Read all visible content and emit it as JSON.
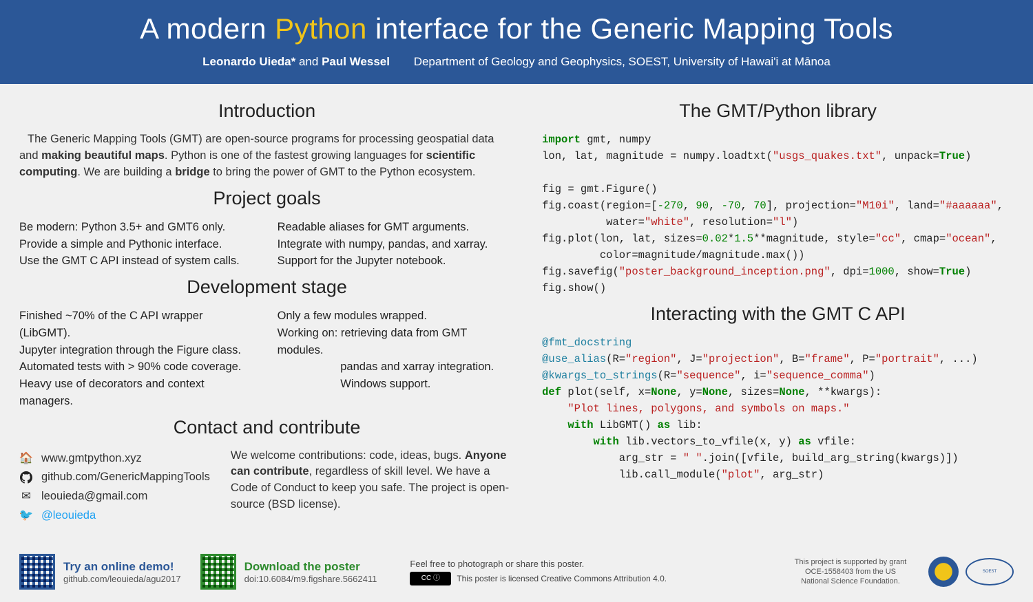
{
  "header": {
    "title_pre": "A modern ",
    "title_hl": "Python",
    "title_post": " interface for the Generic Mapping Tools",
    "author1": "Leonardo Uieda*",
    "and": " and ",
    "author2": "Paul Wessel",
    "dept": "Department of Geology and Geophysics, SOEST, University of Hawai'i at Mānoa"
  },
  "intro": {
    "heading": "Introduction",
    "text_html": "The Generic Mapping Tools (GMT) are open-source programs for processing geospatial data and <b>making beautiful maps</b>. Python is one of the fastest growing languages for <b>scientific computing</b>. We are building a <b>bridge</b> to bring the power of GMT to the Python ecosystem."
  },
  "goals": {
    "heading": "Project goals",
    "left": [
      "Be modern: Python 3.5+ and GMT6 only.",
      "Provide a simple and Pythonic interface.",
      "Use the GMT C API instead of system calls."
    ],
    "right": [
      "Readable aliases for GMT arguments.",
      "Integrate with numpy, pandas, and xarray.",
      "Support for the Jupyter notebook."
    ]
  },
  "dev": {
    "heading": "Development stage",
    "left": [
      "Finished ~70% of the C API wrapper (LibGMT).",
      "Jupyter integration through the Figure class.",
      "Automated tests with > 90% code coverage.",
      "Heavy use of decorators and context managers."
    ],
    "right": [
      "Only a few modules wrapped.",
      "Working on: retrieving data from GMT modules.",
      "                    pandas and xarray integration.",
      "                    Windows support."
    ]
  },
  "contact": {
    "heading": "Contact and contribute",
    "items": [
      {
        "icon": "home",
        "text": "www.gmtpython.xyz"
      },
      {
        "icon": "github",
        "text": "github.com/GenericMappingTools"
      },
      {
        "icon": "mail",
        "text": "leouieda@gmail.com"
      },
      {
        "icon": "twitter",
        "text": "@leouieda",
        "cls": "twitter-handle"
      }
    ],
    "blurb_html": "We welcome contributions: code, ideas, bugs. <b>Anyone can contribute</b>, regardless of skill level. We have a Code of Conduct to keep you safe. The project is open-source (BSD license)."
  },
  "lib": {
    "heading": "The GMT/Python library"
  },
  "capi": {
    "heading": "Interacting with the GMT C API"
  },
  "footer": {
    "demo_title": "Try an online demo!",
    "demo_sub": "github.com/leouieda/agu2017",
    "poster_title": "Download the poster",
    "poster_sub": "doi:10.6084/m9.figshare.5662411",
    "lic1": "Feel free to photograph or share this poster.",
    "lic2": "This poster is licensed Creative Commons Attribution 4.0.",
    "cc": "CC ⓘ",
    "funding": "This project is supported by grant OCE-1558403 from the US National Science Foundation."
  },
  "colors": {
    "header_bg": "#2b5797",
    "highlight": "#f0c419",
    "demo": "#2b5797",
    "poster": "#2e8b2e",
    "twitter": "#1da1f2"
  }
}
